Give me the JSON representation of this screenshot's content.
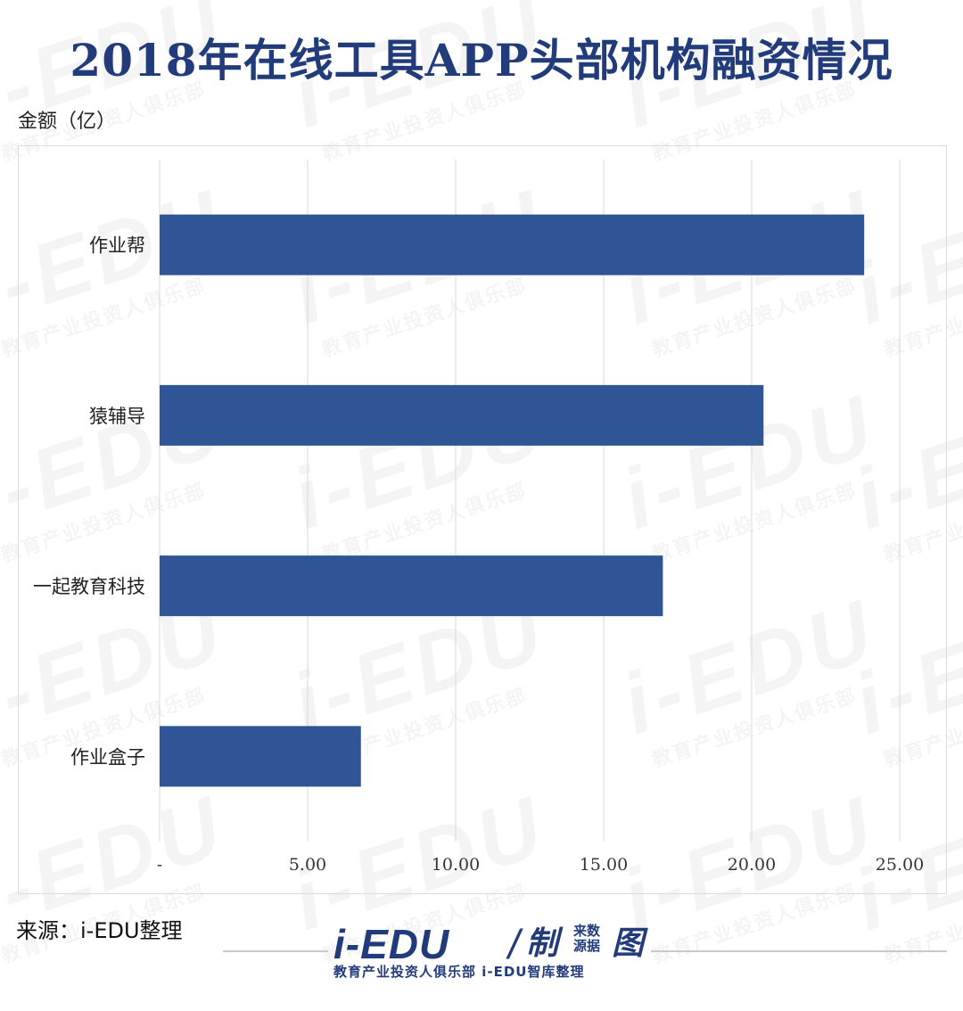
{
  "title": "2018年在线工具APP头部机构融资情况",
  "unit_label": "金额（亿）",
  "source": "来源：i-EDU整理",
  "colors": {
    "bar": "#2f5597",
    "title": "#223b7a",
    "grid": "#d9d9d9"
  },
  "watermark": {
    "main": "i-EDU",
    "sub": "教育产业投资人俱乐部"
  },
  "logo": {
    "main": "i-EDU",
    "slash": "/",
    "zhi": "制",
    "laishu": "来数 源据",
    "tu": "图",
    "sub": "教育产业投资人俱乐部 i-EDU智库整理"
  },
  "chart_data": {
    "type": "bar",
    "orientation": "horizontal",
    "categories": [
      "作业帮",
      "猿辅导",
      "一起教育科技",
      "作业盒子"
    ],
    "values": [
      23.8,
      20.4,
      17.0,
      6.8
    ],
    "xlim": [
      0,
      25
    ],
    "x_ticks": [
      0,
      5,
      10,
      15,
      20,
      25
    ],
    "x_tick_labels": [
      "-",
      "5.00",
      "10.00",
      "15.00",
      "20.00",
      "25.00"
    ],
    "grid": true
  }
}
